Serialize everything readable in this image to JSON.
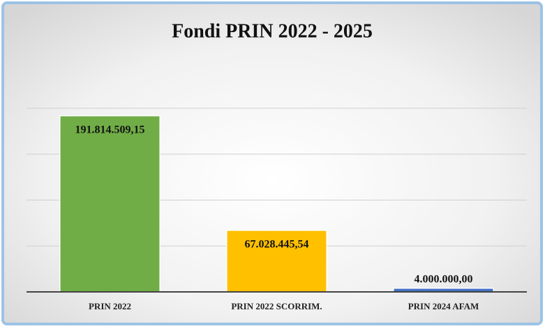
{
  "chart_data": {
    "type": "bar",
    "title": "Fondi PRIN 2022 - 2025",
    "categories": [
      "PRIN 2022",
      "PRIN 2022 SCORRIM.",
      "PRIN 2024 AFAM"
    ],
    "values": [
      191814509.15,
      67028445.54,
      4000000
    ],
    "value_labels": [
      "191.814.509,15",
      "67.028.445,54",
      "4.000.000,00"
    ],
    "colors": [
      "#70ad47",
      "#ffc000",
      "#4472c4"
    ],
    "ylim": [
      0,
      200000000
    ],
    "yticks": [
      0,
      50000000,
      100000000,
      150000000,
      200000000
    ],
    "grid": true
  }
}
